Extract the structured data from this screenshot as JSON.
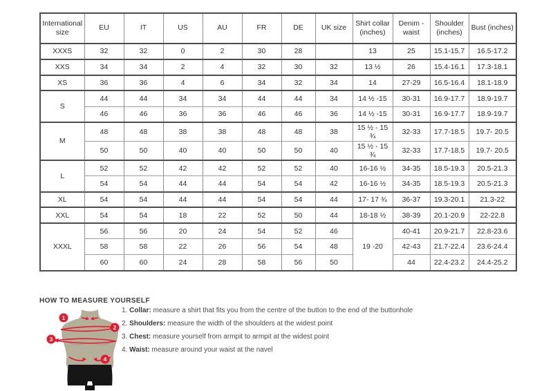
{
  "size_table": {
    "columns": [
      "International size",
      "EU",
      "IT",
      "US",
      "AU",
      "FR",
      "DE",
      "UK size",
      "Shirt collar (inches)",
      "Denim - waist",
      "Shoulder (inches)",
      "Bust (inches)"
    ],
    "groups": [
      {
        "label": "XXXS",
        "rows": [
          {
            "cells": [
              "32",
              "32",
              "0",
              "2",
              "30",
              "28",
              "",
              "13",
              "25",
              "15.1-15.7",
              "16.5-17.2"
            ]
          }
        ]
      },
      {
        "label": "XXS",
        "rows": [
          {
            "cells": [
              "34",
              "34",
              "2",
              "4",
              "32",
              "30",
              "32",
              "13 ½",
              "26",
              "15.4-16.1",
              "17.3-18.1"
            ]
          }
        ]
      },
      {
        "label": "XS",
        "rows": [
          {
            "cells": [
              "36",
              "36",
              "4",
              "6",
              "34",
              "32",
              "34",
              "14",
              "27-29",
              "16.5-16.4",
              "18.1-18.9"
            ]
          }
        ]
      },
      {
        "label": "S",
        "rows": [
          {
            "cells": [
              "44",
              "44",
              "34",
              "34",
              "44",
              "44",
              "34",
              "14 ½ -15",
              "30-31",
              "16.9-17.7",
              "18.9-19.7"
            ]
          },
          {
            "cells": [
              "46",
              "46",
              "36",
              "36",
              "46",
              "46",
              "36",
              "14 ½ -15",
              "30-31",
              "16.9-17.7",
              "18.9-19.7"
            ]
          }
        ]
      },
      {
        "label": "M",
        "rows": [
          {
            "cells": [
              "48",
              "48",
              "38",
              "38",
              "48",
              "48",
              "38",
              "15 ½ - 15 ¾",
              "32-33",
              "17.7-18.5",
              "19.7- 20.5"
            ]
          },
          {
            "cells": [
              "50",
              "50",
              "40",
              "40",
              "50",
              "50",
              "40",
              "15 ½ - 15 ¾",
              "32-33",
              "17.7-18.5",
              "19.7- 20.5"
            ]
          }
        ]
      },
      {
        "label": "L",
        "rows": [
          {
            "cells": [
              "52",
              "52",
              "42",
              "42",
              "52",
              "52",
              "40",
              "16-16 ½",
              "34-35",
              "18.5-19.3",
              "20.5-21.3"
            ]
          },
          {
            "cells": [
              "54",
              "54",
              "44",
              "44",
              "54",
              "54",
              "42",
              "16-16 ½",
              "34-35",
              "18.5-19.3",
              "20.5-21.3"
            ]
          }
        ]
      },
      {
        "label": "XL",
        "rows": [
          {
            "cells": [
              "54",
              "54",
              "44",
              "44",
              "54",
              "54",
              "44",
              "17- 17 ¾",
              "36-37",
              "19.3-20.1",
              "21.3-22"
            ]
          }
        ]
      },
      {
        "label": "XXL",
        "rows": [
          {
            "cells": [
              "54",
              "54",
              "18",
              "22",
              "52",
              "50",
              "44",
              "18-18 ½",
              "38-39",
              "20.1-20.9",
              "22-22.8"
            ]
          }
        ]
      },
      {
        "label": "XXXL",
        "collar_merged": "19 -20",
        "rows": [
          {
            "cells": [
              "56",
              "56",
              "20",
              "24",
              "54",
              "52",
              "46",
              "40-41",
              "20.9-21.7",
              "22.8-23.6"
            ]
          },
          {
            "cells": [
              "58",
              "58",
              "22",
              "26",
              "56",
              "54",
              "48",
              "42-43",
              "21.7-22.4",
              "23.6-24.4"
            ]
          },
          {
            "cells": [
              "60",
              "60",
              "24",
              "28",
              "58",
              "56",
              "50",
              "44",
              "22.4-23.2",
              "24.4-25.2"
            ]
          }
        ]
      }
    ]
  },
  "measure_section": {
    "title": "HOW TO MEASURE YOURSELF",
    "items": [
      {
        "num": "1.",
        "label": "Collar:",
        "text": "measure a shirt that fits you from the centre of the button to the end of the buttonhole"
      },
      {
        "num": "2.",
        "label": "Shoulders:",
        "text": "measure the width of the shoulders at the widest point"
      },
      {
        "num": "3.",
        "label": "Chest:",
        "text": "measure yourself from armpit to armpit at the widest point"
      },
      {
        "num": "4.",
        "label": "Waist:",
        "text": "measure around your waist at the navel"
      }
    ],
    "figure_badges": [
      "1",
      "2",
      "3",
      "4"
    ],
    "colors": {
      "accent_red": "#e41b2f",
      "mannequin_body": "#b3af99",
      "mannequin_shade": "#a29e88",
      "mannequin_shorts": "#161616"
    }
  }
}
